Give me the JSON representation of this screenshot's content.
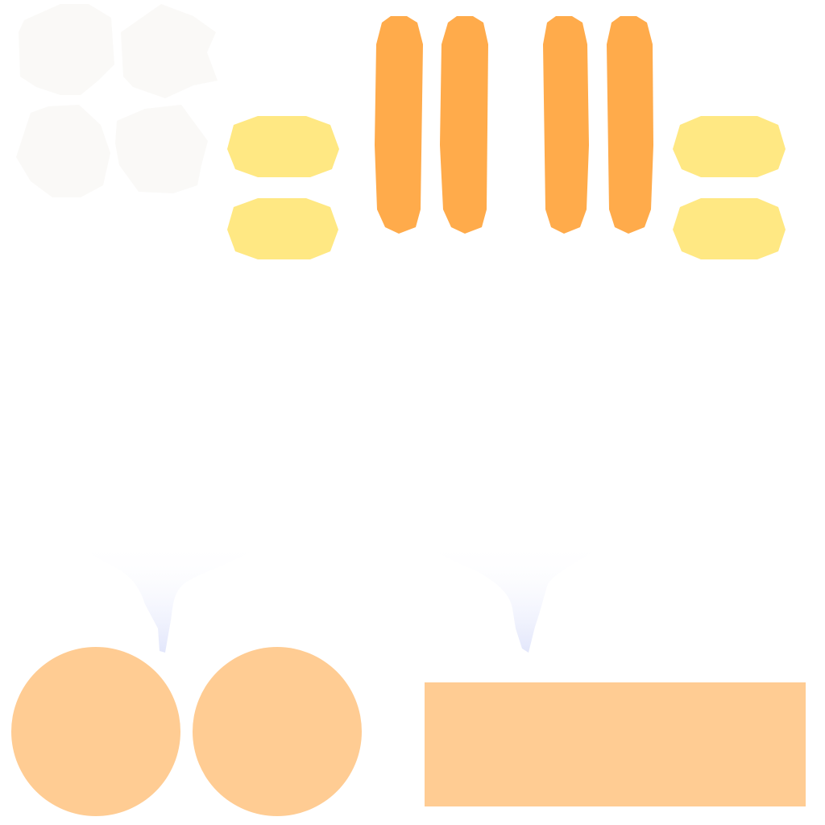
{
  "colors": {
    "background": "#ffffff",
    "white_blob": "#faf9f7",
    "yellow_pill": "#ffe883",
    "orange_bar": "#ffab4b",
    "peach": "#ffcc93",
    "funnel": "#e2e6fb"
  },
  "groups": {
    "white_blobs": {
      "count": 4
    },
    "yellow_pills_left": {
      "count": 2
    },
    "orange_bars": {
      "count": 4
    },
    "yellow_pills_right": {
      "count": 2
    },
    "funnels": {
      "count": 2
    },
    "peach_circles": {
      "count": 2
    },
    "peach_rectangle": {
      "count": 1
    }
  }
}
